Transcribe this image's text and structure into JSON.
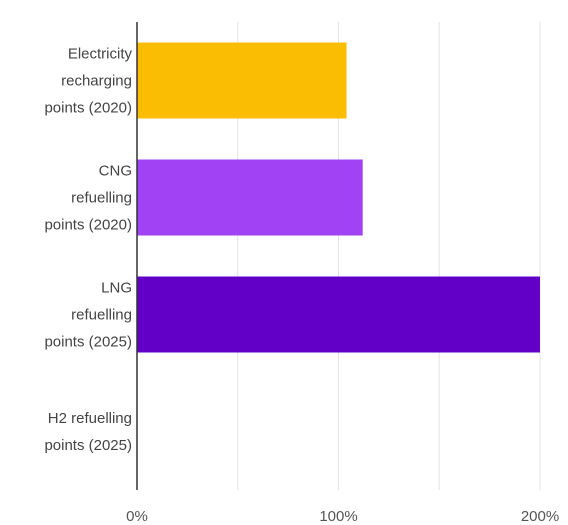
{
  "chart_data": {
    "type": "bar",
    "orientation": "horizontal",
    "title": "",
    "xlabel": "",
    "ylabel": "",
    "categories": [
      [
        "Electricity",
        "recharging",
        "points (2020)"
      ],
      [
        "CNG",
        "refuelling",
        "points (2020)"
      ],
      [
        "LNG",
        "refuelling",
        "points (2025)"
      ],
      [
        "H2 refuelling",
        "points (2025)"
      ]
    ],
    "values": [
      104,
      112,
      200,
      0
    ],
    "colors": [
      "#fbbc04",
      "#a142f4",
      "#6200c8",
      "#a142f4"
    ],
    "xlim": [
      0,
      210
    ],
    "xticks": [
      0,
      100,
      200
    ],
    "xtick_labels": [
      "0%",
      "100%",
      "200%"
    ],
    "grid": true,
    "legend": "none"
  }
}
